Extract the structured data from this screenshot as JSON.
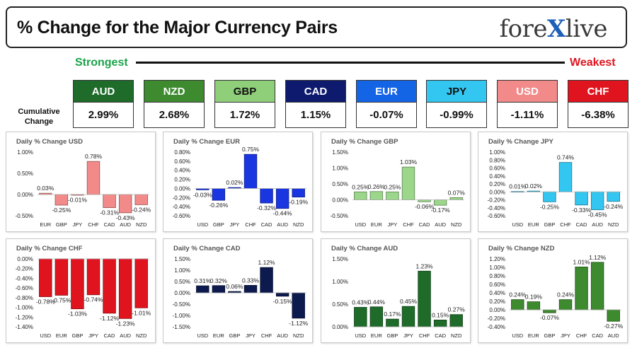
{
  "header": {
    "title": "% Change for the Major Currency Pairs",
    "logo_left": "fore",
    "logo_x": "X",
    "logo_right": "live"
  },
  "strength": {
    "strongest_label": "Strongest",
    "weakest_label": "Weakest",
    "cumulative_label_line1": "Cumulative",
    "cumulative_label_line2": "Change",
    "currencies": [
      {
        "code": "AUD",
        "value": "2.99%",
        "color": "#1e6b2a",
        "text_color": "#ffffff"
      },
      {
        "code": "NZD",
        "value": "2.68%",
        "color": "#3d8a2f",
        "text_color": "#ffffff"
      },
      {
        "code": "GBP",
        "value": "1.72%",
        "color": "#8fcf7a",
        "text_color": "#111111"
      },
      {
        "code": "CAD",
        "value": "1.15%",
        "color": "#0d1a6e",
        "text_color": "#ffffff"
      },
      {
        "code": "EUR",
        "value": "-0.07%",
        "color": "#1464e6",
        "text_color": "#ffffff"
      },
      {
        "code": "JPY",
        "value": "-0.99%",
        "color": "#33c6f0",
        "text_color": "#111111"
      },
      {
        "code": "USD",
        "value": "-1.11%",
        "color": "#f28a8a",
        "text_color": "#ffffff"
      },
      {
        "code": "CHF",
        "value": "-6.38%",
        "color": "#e0141e",
        "text_color": "#ffffff"
      }
    ]
  },
  "chart_data": [
    {
      "type": "bar",
      "title": "Daily % Change USD",
      "categories": [
        "EUR",
        "GBP",
        "JPY",
        "CHF",
        "CAD",
        "AUD",
        "NZD"
      ],
      "values": [
        0.03,
        -0.25,
        -0.01,
        0.78,
        -0.31,
        -0.43,
        -0.24
      ],
      "labels": [
        "0.03%",
        "-0.25%",
        "-0.01%",
        "0.78%",
        "-0.31%",
        "-0.43%",
        "-0.24%"
      ],
      "ylim": [
        -0.5,
        1.0
      ],
      "yticks": [
        -0.5,
        0,
        0.5,
        1.0
      ],
      "ytick_labels": [
        "-0.50%",
        "0.00%",
        "0.50%",
        "1.00%"
      ],
      "color": "#f28a8a"
    },
    {
      "type": "bar",
      "title": "Daily % Change EUR",
      "categories": [
        "USD",
        "GBP",
        "JPY",
        "CHF",
        "CAD",
        "AUD",
        "NZD"
      ],
      "values": [
        -0.03,
        -0.26,
        0.02,
        0.75,
        -0.32,
        -0.44,
        -0.19
      ],
      "labels": [
        "-0.03%",
        "-0.26%",
        "0.02%",
        "0.75%",
        "-0.32%",
        "-0.44%",
        "-0.19%"
      ],
      "ylim": [
        -0.6,
        0.8
      ],
      "yticks": [
        -0.6,
        -0.4,
        -0.2,
        0,
        0.2,
        0.4,
        0.6,
        0.8
      ],
      "ytick_labels": [
        "-0.60%",
        "-0.40%",
        "-0.20%",
        "0.00%",
        "0.20%",
        "0.40%",
        "0.60%",
        "0.80%"
      ],
      "color": "#1a36e0"
    },
    {
      "type": "bar",
      "title": "Daily % Change GBP",
      "categories": [
        "USD",
        "EUR",
        "JPY",
        "CHF",
        "CAD",
        "AUD",
        "NZD"
      ],
      "values": [
        0.25,
        0.26,
        0.25,
        1.03,
        -0.06,
        -0.17,
        0.07
      ],
      "labels": [
        "0.25%",
        "0.26%",
        "0.25%",
        "1.03%",
        "-0.06%",
        "-0.17%",
        "0.07%"
      ],
      "ylim": [
        -0.5,
        1.5
      ],
      "yticks": [
        -0.5,
        0,
        0.5,
        1.0,
        1.5
      ],
      "ytick_labels": [
        "-0.50%",
        "0.00%",
        "0.50%",
        "1.00%",
        "1.50%"
      ],
      "color": "#9bd68a"
    },
    {
      "type": "bar",
      "title": "Daily % Change JPY",
      "categories": [
        "USD",
        "EUR",
        "GBP",
        "CHF",
        "CAD",
        "AUD",
        "NZD"
      ],
      "values": [
        0.01,
        0.02,
        -0.25,
        0.74,
        -0.33,
        -0.45,
        -0.24
      ],
      "labels": [
        "0.01%",
        "0.02%",
        "-0.25%",
        "0.74%",
        "-0.33%",
        "-0.45%",
        "-0.24%"
      ],
      "ylim": [
        -0.6,
        1.0
      ],
      "yticks": [
        -0.6,
        -0.4,
        -0.2,
        0,
        0.2,
        0.4,
        0.6,
        0.8,
        1.0
      ],
      "ytick_labels": [
        "-0.60%",
        "-0.40%",
        "-0.20%",
        "0.00%",
        "0.20%",
        "0.40%",
        "0.60%",
        "0.80%",
        "1.00%"
      ],
      "color": "#33c6f0"
    },
    {
      "type": "bar",
      "title": "Daily % Change CHF",
      "categories": [
        "USD",
        "EUR",
        "GBP",
        "JPY",
        "CAD",
        "AUD",
        "NZD"
      ],
      "values": [
        -0.78,
        -0.75,
        -1.03,
        -0.74,
        -1.12,
        -1.23,
        -1.01
      ],
      "labels": [
        "-0.78%",
        "-0.75%",
        "-1.03%",
        "-0.74%",
        "-1.12%",
        "-1.23%",
        "-1.01%"
      ],
      "ylim": [
        -1.4,
        0
      ],
      "yticks": [
        -1.4,
        -1.2,
        -1.0,
        -0.8,
        -0.6,
        -0.4,
        -0.2,
        0
      ],
      "ytick_labels": [
        "-1.40%",
        "-1.20%",
        "-1.00%",
        "-0.80%",
        "-0.60%",
        "-0.40%",
        "-0.20%",
        "0.00%"
      ],
      "color": "#e0141e"
    },
    {
      "type": "bar",
      "title": "Daily % Change CAD",
      "categories": [
        "USD",
        "EUR",
        "GBP",
        "JPY",
        "CHF",
        "AUD",
        "NZD"
      ],
      "values": [
        0.31,
        0.32,
        0.06,
        0.33,
        1.12,
        -0.15,
        -1.12
      ],
      "labels": [
        "0.31%",
        "0.32%",
        "0.06%",
        "0.33%",
        "1.12%",
        "-0.15%",
        "-1.12%"
      ],
      "ylim": [
        -1.5,
        1.5
      ],
      "yticks": [
        -1.5,
        -1.0,
        -0.5,
        0,
        0.5,
        1.0,
        1.5
      ],
      "ytick_labels": [
        "-1.50%",
        "-1.00%",
        "-0.50%",
        "0.00%",
        "0.50%",
        "1.00%",
        "1.50%"
      ],
      "color": "#0d1a4e"
    },
    {
      "type": "bar",
      "title": "Daily % Change AUD",
      "categories": [
        "USD",
        "EUR",
        "GBP",
        "JPY",
        "CHF",
        "CAD",
        "NZD"
      ],
      "values": [
        0.43,
        0.44,
        0.17,
        0.45,
        1.23,
        0.15,
        0.27
      ],
      "labels": [
        "0.43%",
        "0.44%",
        "0.17%",
        "0.45%",
        "1.23%",
        "0.15%",
        "0.27%"
      ],
      "ylim": [
        0,
        1.5
      ],
      "yticks": [
        0,
        0.5,
        1.0,
        1.5
      ],
      "ytick_labels": [
        "0.00%",
        "0.50%",
        "1.00%",
        "1.50%"
      ],
      "color": "#1e6b2a"
    },
    {
      "type": "bar",
      "title": "Daily % Change NZD",
      "categories": [
        "USD",
        "EUR",
        "GBP",
        "JPY",
        "CHF",
        "CAD",
        "AUD"
      ],
      "values": [
        0.24,
        0.19,
        -0.07,
        0.24,
        1.01,
        1.12,
        -0.27
      ],
      "labels": [
        "0.24%",
        "0.19%",
        "-0.07%",
        "0.24%",
        "1.01%",
        "1.12%",
        "-0.27%"
      ],
      "ylim": [
        -0.4,
        1.2
      ],
      "yticks": [
        -0.4,
        -0.2,
        0,
        0.2,
        0.4,
        0.6,
        0.8,
        1.0,
        1.2
      ],
      "ytick_labels": [
        "-0.40%",
        "-0.20%",
        "0.00%",
        "0.20%",
        "0.40%",
        "0.60%",
        "0.80%",
        "1.00%",
        "1.20%"
      ],
      "color": "#3d8a2f"
    }
  ]
}
